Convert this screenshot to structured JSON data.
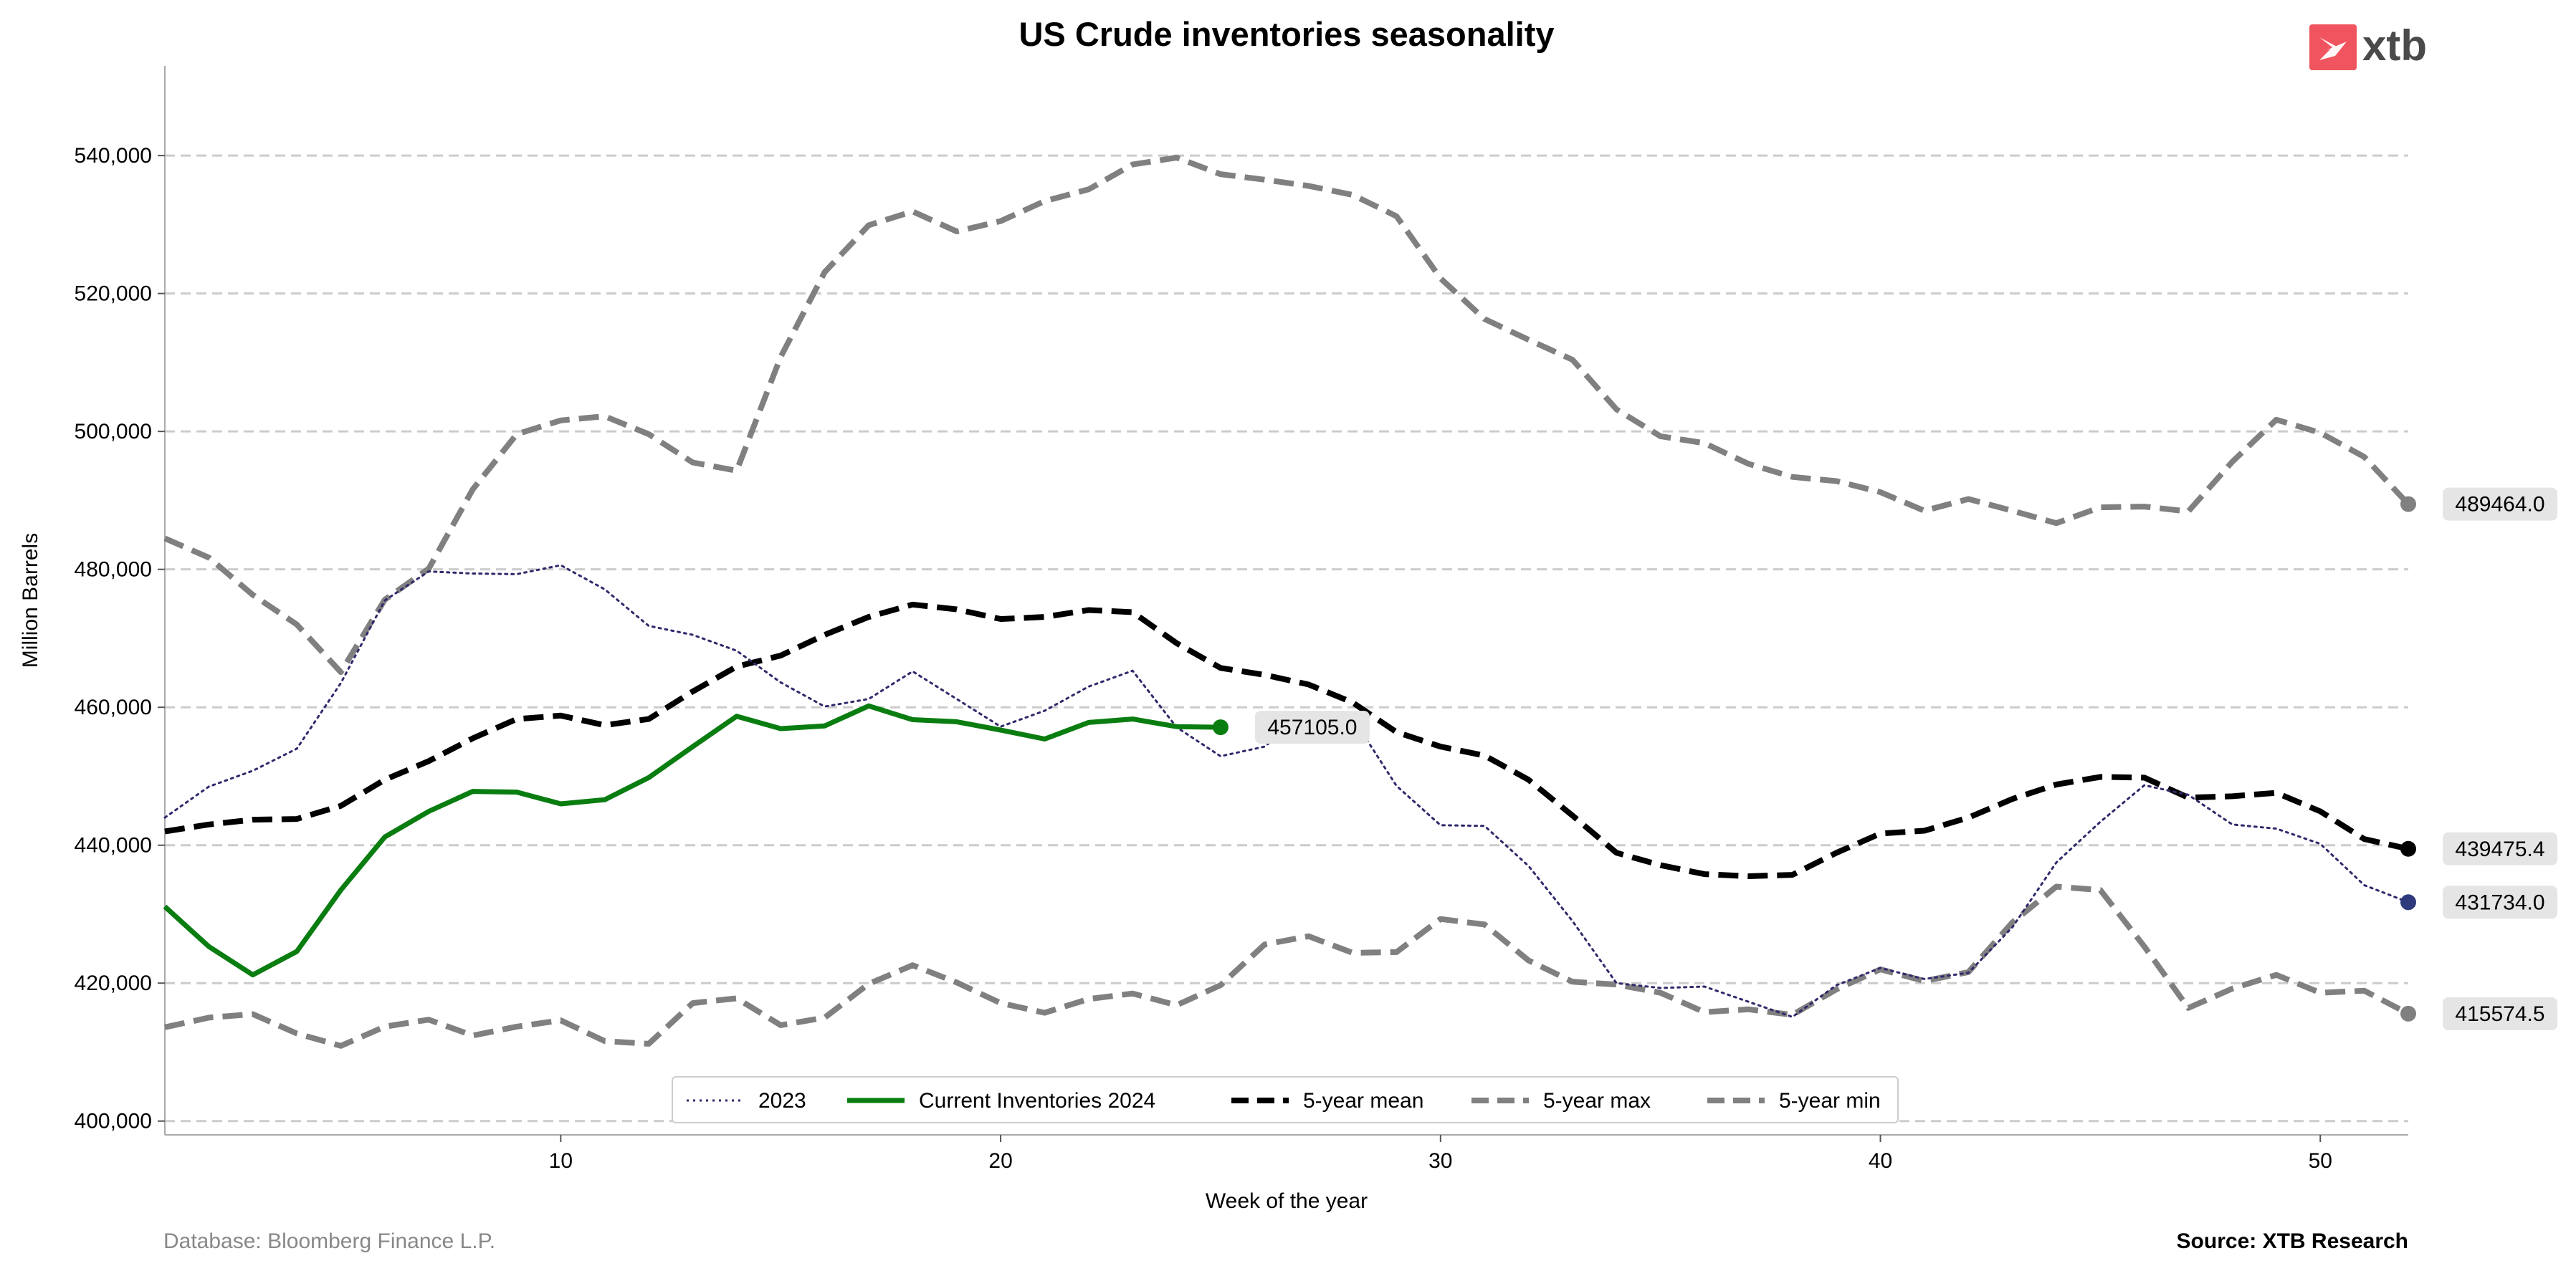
{
  "chart_data": {
    "type": "line",
    "title": "US Crude inventories seasonality",
    "xlabel": "Week of the year",
    "ylabel": "Million Barrels",
    "xlim": [
      1,
      52
    ],
    "ylim": [
      398000,
      553000
    ],
    "xticks": [
      10,
      20,
      30,
      40,
      50
    ],
    "yticks": [
      400000,
      420000,
      440000,
      460000,
      480000,
      500000,
      520000,
      540000
    ],
    "ytick_labels": [
      "400,000",
      "420,000",
      "440,000",
      "460,000",
      "480,000",
      "500,000",
      "520,000",
      "540,000"
    ],
    "grid": "horizontal dashed",
    "legend_position": "bottom-center",
    "series": [
      {
        "name": "2023",
        "color": "#2e2a6b",
        "style": "dotted",
        "x": [
          1,
          2,
          3,
          4,
          5,
          6,
          7,
          8,
          9,
          10,
          11,
          12,
          13,
          14,
          15,
          16,
          17,
          18,
          19,
          20,
          21,
          22,
          23,
          24,
          25,
          26,
          27,
          28,
          29,
          30,
          31,
          32,
          33,
          34,
          35,
          36,
          37,
          38,
          39,
          40,
          41,
          42,
          43,
          44,
          45,
          46,
          47,
          48,
          49,
          50,
          51,
          52
        ],
        "values": [
          444000,
          448500,
          450800,
          454000,
          463500,
          475500,
          479700,
          479400,
          479300,
          480600,
          477100,
          471800,
          470500,
          468200,
          463600,
          460100,
          461200,
          465200,
          461200,
          457200,
          459500,
          463000,
          465300,
          457100,
          452900,
          454300,
          459300,
          458500,
          448600,
          442900,
          442800,
          437000,
          429000,
          420000,
          419300,
          419500,
          417300,
          415100,
          419700,
          422200,
          420600,
          421500,
          428100,
          437500,
          443400,
          448700,
          447300,
          443000,
          442400,
          440200,
          434200,
          431734
        ]
      },
      {
        "name": "Current Inventories 2024",
        "color": "#0a7d10",
        "style": "solid",
        "x": [
          1,
          2,
          3,
          4,
          5,
          6,
          7,
          8,
          9,
          10,
          11,
          12,
          13,
          14,
          15,
          16,
          17,
          18,
          19,
          20,
          21,
          22,
          23,
          24,
          25
        ],
        "values": [
          431100,
          425300,
          421200,
          424600,
          433500,
          441200,
          444900,
          447800,
          447700,
          446000,
          446600,
          449800,
          454300,
          458700,
          456900,
          457300,
          460200,
          458200,
          457900,
          456700,
          455400,
          457800,
          458300,
          457200,
          457105
        ]
      },
      {
        "name": "5-year mean",
        "color": "#000000",
        "style": "dashed",
        "x": [
          1,
          2,
          3,
          4,
          5,
          6,
          7,
          8,
          9,
          10,
          11,
          12,
          13,
          14,
          15,
          16,
          17,
          18,
          19,
          20,
          21,
          22,
          23,
          24,
          25,
          26,
          27,
          28,
          29,
          30,
          31,
          32,
          33,
          34,
          35,
          36,
          37,
          38,
          39,
          40,
          41,
          42,
          43,
          44,
          45,
          46,
          47,
          48,
          49,
          50,
          51,
          52
        ],
        "values": [
          442000,
          443000,
          443700,
          443800,
          445700,
          449500,
          452200,
          455500,
          458300,
          458800,
          457400,
          458300,
          462300,
          465900,
          467500,
          470500,
          473100,
          474900,
          474200,
          472800,
          473100,
          474100,
          473800,
          469300,
          465700,
          464700,
          463300,
          460700,
          456400,
          454300,
          453000,
          449500,
          444300,
          438900,
          437100,
          435800,
          435500,
          435700,
          438900,
          441700,
          442100,
          444000,
          446700,
          448800,
          449900,
          449800,
          446900,
          447100,
          447600,
          444900,
          440900,
          439475
        ]
      },
      {
        "name": "5-year max",
        "color": "#808080",
        "style": "dashed",
        "x": [
          1,
          2,
          3,
          4,
          5,
          6,
          7,
          8,
          9,
          10,
          11,
          12,
          13,
          14,
          15,
          16,
          17,
          18,
          19,
          20,
          21,
          22,
          23,
          24,
          25,
          26,
          27,
          28,
          29,
          30,
          31,
          32,
          33,
          34,
          35,
          36,
          37,
          38,
          39,
          40,
          41,
          42,
          43,
          44,
          45,
          46,
          47,
          48,
          49,
          50,
          51,
          52
        ],
        "values": [
          484500,
          481700,
          476300,
          472000,
          465100,
          475600,
          480100,
          491600,
          499600,
          501600,
          502200,
          499600,
          495500,
          494300,
          510800,
          523100,
          529900,
          531900,
          529000,
          530500,
          533400,
          535100,
          538700,
          539700,
          537300,
          536500,
          535600,
          534300,
          531200,
          522200,
          516300,
          513300,
          510400,
          503200,
          499300,
          498300,
          495300,
          493400,
          492800,
          491200,
          488500,
          490200,
          488500,
          486700,
          489000,
          489100,
          488400,
          495600,
          501700,
          499800,
          496300,
          489464
        ]
      },
      {
        "name": "5-year min",
        "color": "#808080",
        "style": "dashed",
        "x": [
          1,
          2,
          3,
          4,
          5,
          6,
          7,
          8,
          9,
          10,
          11,
          12,
          13,
          14,
          15,
          16,
          17,
          18,
          19,
          20,
          21,
          22,
          23,
          24,
          25,
          26,
          27,
          28,
          29,
          30,
          31,
          32,
          33,
          34,
          35,
          36,
          37,
          38,
          39,
          40,
          41,
          42,
          43,
          44,
          45,
          46,
          47,
          48,
          49,
          50,
          51,
          52
        ],
        "values": [
          413600,
          415000,
          415500,
          412700,
          410900,
          413700,
          414700,
          412400,
          413700,
          414600,
          411600,
          411200,
          417100,
          417800,
          413900,
          415000,
          419900,
          422600,
          420100,
          417100,
          415700,
          417700,
          418500,
          416800,
          419700,
          425600,
          426800,
          424400,
          424500,
          429300,
          428500,
          423300,
          420200,
          419800,
          418600,
          415800,
          416200,
          415400,
          419100,
          422000,
          420300,
          421600,
          428800,
          434000,
          433500,
          425300,
          416400,
          419200,
          421200,
          418600,
          418900,
          415574
        ]
      }
    ],
    "end_labels": [
      {
        "series": "Current Inventories 2024",
        "text": "457105.0"
      },
      {
        "series": "5-year max",
        "text": "489464.0"
      },
      {
        "series": "5-year mean",
        "text": "439475.4"
      },
      {
        "series": "2023",
        "text": "431734.0"
      },
      {
        "series": "5-year min",
        "text": "415574.5"
      }
    ],
    "end_marker_colors": {
      "2023": "#2e3a7c",
      "Current Inventories 2024": "#0a7d10",
      "5-year mean": "#000000",
      "5-year max": "#808080",
      "5-year min": "#808080"
    }
  },
  "footer": {
    "database": "Database: Bloomberg Finance L.P.",
    "source": "Source: XTB Research"
  },
  "logo": {
    "text": "xtb",
    "icon": "xtb-logo-icon",
    "color": "#f0555f"
  }
}
